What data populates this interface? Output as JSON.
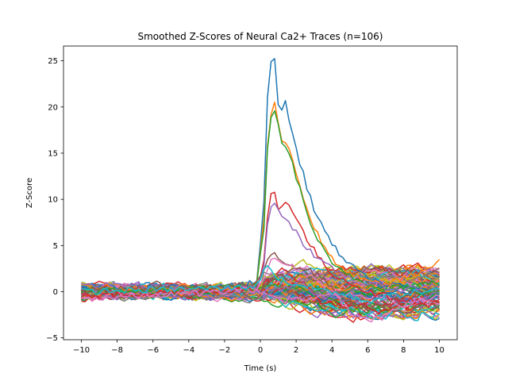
{
  "chart_data": {
    "type": "line",
    "title": "Smoothed Z-Scores of Neural Ca2+ Traces (n=106)",
    "xlabel": "Time (s)",
    "ylabel": "Z-Score",
    "xlim": [
      -11,
      11
    ],
    "ylim": [
      -5.2,
      26.6
    ],
    "x_ticks": [
      -10,
      -8,
      -6,
      -4,
      -2,
      0,
      2,
      4,
      6,
      8,
      10
    ],
    "x_tick_labels": [
      "−10",
      "−8",
      "−6",
      "−4",
      "−2",
      "0",
      "2",
      "4",
      "6",
      "8",
      "10"
    ],
    "y_ticks": [
      -5,
      0,
      5,
      10,
      15,
      20,
      25
    ],
    "y_tick_labels": [
      "−5",
      "0",
      "5",
      "10",
      "15",
      "20",
      "25"
    ],
    "grid": false,
    "legend": "none",
    "n_traces": 106,
    "time_range": [
      -10,
      10
    ],
    "sample_interval_s": 0.2,
    "palette": [
      "#1f77b4",
      "#ff7f0e",
      "#2ca02c",
      "#d62728",
      "#9467bd",
      "#8c564b",
      "#e377c2",
      "#7f7f7f",
      "#bcbd22",
      "#17becf"
    ],
    "key_traces": [
      {
        "color": "#1f77b4",
        "x": [
          -10,
          -2,
          -0.2,
          0.2,
          0.4,
          0.6,
          0.8,
          1.0,
          1.2,
          1.4,
          1.6,
          2.0,
          2.5,
          3.0,
          3.5,
          4.0,
          4.5,
          5.0,
          5.5,
          6.0,
          7.0,
          8.0,
          9.0,
          10.0
        ],
        "y": [
          0.3,
          0.5,
          1.0,
          10.0,
          21.0,
          24.6,
          25.1,
          20.5,
          19.8,
          20.6,
          18.5,
          15.5,
          12.0,
          9.0,
          7.0,
          5.0,
          4.0,
          3.0,
          2.0,
          1.5,
          0.8,
          0.5,
          0.3,
          0.5
        ]
      },
      {
        "color": "#ff7f0e",
        "x": [
          -10,
          -2,
          -0.2,
          0.2,
          0.4,
          0.6,
          0.8,
          1.0,
          1.2,
          1.4,
          1.6,
          2.0,
          2.5,
          3.0,
          3.5,
          4.0,
          4.5,
          5.0,
          5.5,
          6.0,
          7.0,
          8.0,
          9.0,
          10.0
        ],
        "y": [
          0.5,
          0.3,
          0.8,
          8.0,
          16.0,
          19.5,
          20.3,
          18.5,
          16.5,
          16.0,
          15.5,
          13.0,
          9.5,
          7.0,
          5.0,
          3.5,
          2.5,
          2.0,
          1.5,
          1.0,
          0.8,
          1.5,
          2.0,
          3.5
        ]
      },
      {
        "color": "#2ca02c",
        "x": [
          -10,
          -2,
          -0.2,
          0.2,
          0.4,
          0.6,
          0.8,
          1.0,
          1.2,
          1.4,
          1.6,
          2.0,
          2.5,
          3.0,
          3.5,
          4.0,
          4.5,
          5.0,
          5.5,
          6.0,
          7.0,
          8.0,
          9.0,
          10.0
        ],
        "y": [
          0.0,
          0.4,
          0.7,
          7.0,
          15.5,
          19.0,
          19.8,
          17.8,
          16.0,
          15.5,
          15.2,
          12.5,
          9.0,
          6.5,
          4.5,
          3.0,
          2.2,
          1.8,
          1.2,
          0.8,
          0.5,
          0.6,
          0.8,
          1.0
        ]
      },
      {
        "color": "#d62728",
        "x": [
          -10,
          -2,
          -0.2,
          0.2,
          0.4,
          0.6,
          0.8,
          1.0,
          1.2,
          1.4,
          1.6,
          2.0,
          2.5,
          3.0,
          3.5,
          4.0,
          4.5,
          5.0,
          5.5,
          6.0,
          7.0,
          8.0,
          9.0,
          10.0
        ],
        "y": [
          -0.5,
          0.2,
          0.3,
          3.5,
          8.0,
          10.5,
          10.8,
          9.0,
          9.2,
          10.0,
          9.5,
          8.0,
          6.0,
          4.5,
          3.0,
          2.0,
          1.5,
          1.0,
          0.5,
          0.0,
          -0.5,
          -0.8,
          -1.0,
          -1.2
        ]
      },
      {
        "color": "#9467bd",
        "x": [
          -10,
          -2,
          -0.2,
          0.2,
          0.4,
          0.6,
          0.8,
          1.0,
          1.2,
          1.4,
          1.6,
          2.0,
          2.5,
          3.0,
          3.5,
          4.0,
          4.5,
          5.0,
          5.5,
          6.0,
          7.0,
          8.0,
          9.0,
          10.0
        ],
        "y": [
          0.8,
          0.2,
          0.5,
          3.0,
          7.0,
          9.0,
          9.8,
          9.0,
          8.5,
          8.0,
          7.5,
          6.5,
          5.0,
          3.8,
          3.0,
          2.5,
          2.0,
          1.5,
          1.0,
          0.8,
          0.5,
          0.2,
          0.5,
          0.8
        ]
      },
      {
        "color": "#8c564b",
        "x": [
          -10,
          -2,
          -0.2,
          0.2,
          0.4,
          0.6,
          0.8,
          1.0,
          1.2,
          1.4,
          1.6,
          2.0,
          2.5,
          3.0,
          3.5,
          4.0,
          4.5,
          5.0,
          5.5,
          6.0,
          7.0,
          8.0,
          9.0,
          10.0
        ],
        "y": [
          0.2,
          0.5,
          0.8,
          2.0,
          3.5,
          4.0,
          4.2,
          3.8,
          3.5,
          3.2,
          3.0,
          2.8,
          2.5,
          2.0,
          1.5,
          0.5,
          -0.5,
          -1.0,
          -1.5,
          -1.8,
          -1.5,
          -0.5,
          0.0,
          0.5
        ]
      },
      {
        "color": "#e377c2",
        "x": [
          -10,
          -2,
          -0.2,
          0.2,
          0.4,
          0.6,
          0.8,
          1.0,
          1.2,
          1.4,
          1.6,
          2.0,
          2.5,
          3.0,
          3.5,
          4.0,
          4.5,
          5.0,
          5.5,
          6.0,
          7.0,
          8.0,
          9.0,
          10.0
        ],
        "y": [
          -0.8,
          0.0,
          0.3,
          1.5,
          2.5,
          3.2,
          3.5,
          3.4,
          3.2,
          3.0,
          2.8,
          2.5,
          2.0,
          1.5,
          0.8,
          0.0,
          -1.0,
          -2.0,
          -2.8,
          -3.2,
          -2.5,
          -1.5,
          -0.8,
          -0.5
        ]
      },
      {
        "color": "#17becf",
        "x": [
          -10,
          -2,
          -0.2,
          0.2,
          0.4,
          0.6,
          0.8,
          1.0,
          1.2,
          1.4,
          1.6,
          2.0,
          2.5,
          3.0,
          3.5,
          4.0,
          4.5,
          5.0,
          5.5,
          6.0,
          7.0,
          8.0,
          9.0,
          10.0
        ],
        "y": [
          0.0,
          0.4,
          0.6,
          2.5,
          3.0,
          2.2,
          1.8,
          1.5,
          1.3,
          1.2,
          1.0,
          0.8,
          0.6,
          0.4,
          0.2,
          0.0,
          -0.3,
          -0.5,
          -0.8,
          -1.0,
          -0.6,
          -0.2,
          0.0,
          0.2
        ]
      }
    ],
    "background_traces": {
      "count": 98,
      "baseline_range": [
        -1.5,
        1.5
      ],
      "post_stimulus_range": [
        -3.5,
        3.5
      ]
    }
  }
}
